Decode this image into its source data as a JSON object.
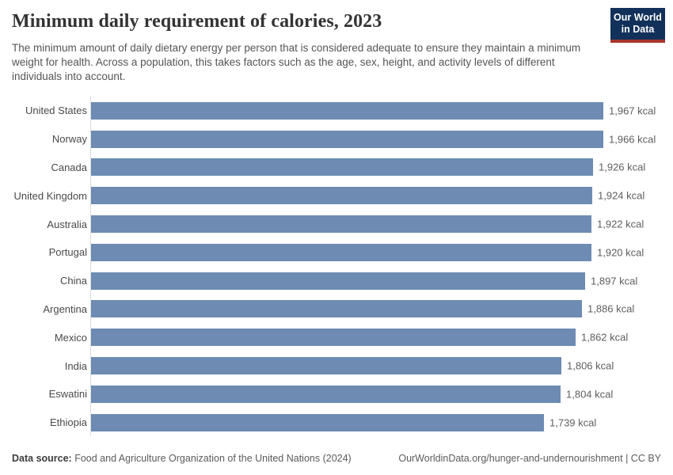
{
  "header": {
    "title": "Minimum daily requirement of calories, 2023",
    "subtitle": "The minimum amount of daily dietary energy per person that is considered adequate to ensure they maintain a minimum weight for health. Across a population, this takes factors such as the age, sex, height, and activity levels of different individuals into account.",
    "logo": {
      "line1": "Our World",
      "line2": "in Data"
    }
  },
  "chart_data": {
    "type": "bar",
    "orientation": "horizontal",
    "title": "Minimum daily requirement of calories, 2023",
    "unit": "kcal",
    "categories": [
      "United States",
      "Norway",
      "Canada",
      "United Kingdom",
      "Australia",
      "Portugal",
      "China",
      "Argentina",
      "Mexico",
      "India",
      "Eswatini",
      "Ethiopia"
    ],
    "values": [
      1967,
      1966,
      1926,
      1924,
      1922,
      1920,
      1897,
      1886,
      1862,
      1806,
      1804,
      1739
    ],
    "value_labels": [
      "1,967 kcal",
      "1,966 kcal",
      "1,926 kcal",
      "1,924 kcal",
      "1,922 kcal",
      "1,920 kcal",
      "1,897 kcal",
      "1,886 kcal",
      "1,862 kcal",
      "1,806 kcal",
      "1,804 kcal",
      "1,739 kcal"
    ],
    "xlim": [
      0,
      1967
    ],
    "grid": false,
    "legend": false,
    "bar_color": "#6d8bb3"
  },
  "footer": {
    "source_label": "Data source:",
    "source_text": " Food and Agriculture Organization of the United Nations (2024)",
    "credit": "OurWorldinData.org/hunger-and-undernourishment | CC BY"
  },
  "colors": {
    "bar": "#6d8bb3",
    "axis": "#dcdcdc",
    "logo_bg": "#12315a",
    "logo_stripe": "#a8352b"
  }
}
